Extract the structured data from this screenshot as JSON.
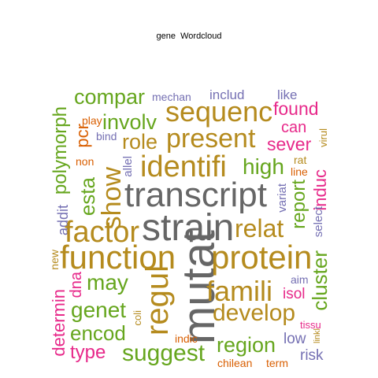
{
  "title": "gene  Wordcloud",
  "colors": {
    "green": "#66a61e",
    "gold": "#b58b1e",
    "orange": "#d95f02",
    "gray": "#666666",
    "purple": "#7570b3",
    "pink": "#e7298a",
    "teal": "#1b9e77"
  },
  "words": [
    {
      "text": "compar",
      "color": "green"
    },
    {
      "text": "mechan",
      "color": "purple"
    },
    {
      "text": "includ",
      "color": "purple"
    },
    {
      "text": "like",
      "color": "purple"
    },
    {
      "text": "found",
      "color": "pink"
    },
    {
      "text": "play",
      "color": "orange"
    },
    {
      "text": "involv",
      "color": "green"
    },
    {
      "text": "sequenc",
      "color": "gold"
    },
    {
      "text": "can",
      "color": "pink"
    },
    {
      "text": "bind",
      "color": "purple"
    },
    {
      "text": "role",
      "color": "gold"
    },
    {
      "text": "present",
      "color": "gold"
    },
    {
      "text": "sever",
      "color": "pink"
    },
    {
      "text": "polymorph",
      "color": "green"
    },
    {
      "text": "pcr",
      "color": "orange"
    },
    {
      "text": "non",
      "color": "orange"
    },
    {
      "text": "allel",
      "color": "purple"
    },
    {
      "text": "identifi",
      "color": "gold"
    },
    {
      "text": "high",
      "color": "green"
    },
    {
      "text": "rat",
      "color": "gold"
    },
    {
      "text": "line",
      "color": "orange"
    },
    {
      "text": "virul",
      "color": "gold"
    },
    {
      "text": "show",
      "color": "gold"
    },
    {
      "text": "esta",
      "color": "green"
    },
    {
      "text": "transcript",
      "color": "gray"
    },
    {
      "text": "report",
      "color": "green"
    },
    {
      "text": "induc",
      "color": "pink"
    },
    {
      "text": "variat",
      "color": "purple"
    },
    {
      "text": "select",
      "color": "purple"
    },
    {
      "text": "addit",
      "color": "purple"
    },
    {
      "text": "factor",
      "color": "gold"
    },
    {
      "text": "strain",
      "color": "gray"
    },
    {
      "text": "relat",
      "color": "gold"
    },
    {
      "text": "new",
      "color": "gold"
    },
    {
      "text": "function",
      "color": "gold"
    },
    {
      "text": "mutat",
      "color": "gray"
    },
    {
      "text": "protein",
      "color": "gold"
    },
    {
      "text": "cluster",
      "color": "green"
    },
    {
      "text": "dna",
      "color": "pink"
    },
    {
      "text": "may",
      "color": "green"
    },
    {
      "text": "regul",
      "color": "gold"
    },
    {
      "text": "famili",
      "color": "gold"
    },
    {
      "text": "aim",
      "color": "purple"
    },
    {
      "text": "isol",
      "color": "pink"
    },
    {
      "text": "determin",
      "color": "pink"
    },
    {
      "text": "genet",
      "color": "green"
    },
    {
      "text": "develop",
      "color": "gold"
    },
    {
      "text": "coli",
      "color": "gold"
    },
    {
      "text": "tissu",
      "color": "pink"
    },
    {
      "text": "encod",
      "color": "green"
    },
    {
      "text": "linkl",
      "color": "gold"
    },
    {
      "text": "type",
      "color": "pink"
    },
    {
      "text": "indic",
      "color": "orange"
    },
    {
      "text": "low",
      "color": "purple"
    },
    {
      "text": "region",
      "color": "green"
    },
    {
      "text": "suggest",
      "color": "green"
    },
    {
      "text": "risk",
      "color": "purple"
    },
    {
      "text": "chilean",
      "color": "orange"
    },
    {
      "text": "term",
      "color": "orange"
    }
  ]
}
